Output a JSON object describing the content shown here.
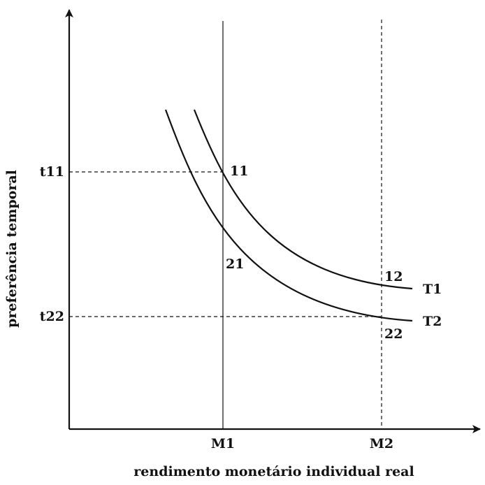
{
  "axes": {
    "xlabel": "rendimento monetário individual real",
    "ylabel": "preferência temporal"
  },
  "x_ticks": [
    "M1",
    "M2"
  ],
  "y_ticks": [
    "t11",
    "t22"
  ],
  "curves": [
    {
      "label": "T1"
    },
    {
      "label": "T2"
    }
  ],
  "points": [
    {
      "label": "11"
    },
    {
      "label": "21"
    },
    {
      "label": "12"
    },
    {
      "label": "22"
    }
  ],
  "colors": {
    "ink": "#111111",
    "background": "#ffffff"
  }
}
